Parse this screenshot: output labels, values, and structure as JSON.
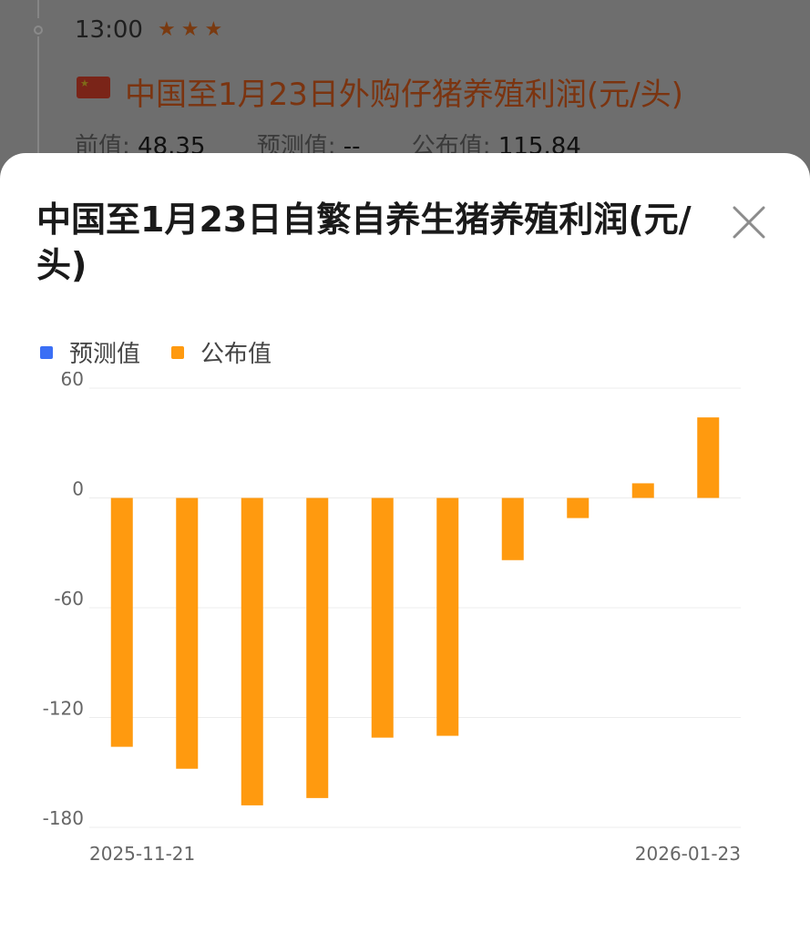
{
  "background_item": {
    "time": "13:00",
    "stars": "★★★",
    "flag_icon": "china-flag-icon",
    "title": "中国至1月23日外购仔猪养殖利润(元/头)",
    "previous_label": "前值:",
    "previous_value": "48.35",
    "forecast_label": "预测值:",
    "forecast_value": "--",
    "actual_label": "公布值:",
    "actual_value": "115.84"
  },
  "sheet": {
    "title": "中国至1月23日自繁自养生猪养殖利润(元/头)",
    "close_icon": "close-icon"
  },
  "colors": {
    "forecast": "#3b6ff5",
    "actual": "#ff9a0f",
    "grid": "#ececec",
    "axis_text": "#666666"
  },
  "chart_data": {
    "type": "bar",
    "title": "中国至1月23日自繁自养生猪养殖利润(元/头)",
    "legend": [
      {
        "name": "预测值",
        "color": "#3b6ff5"
      },
      {
        "name": "公布值",
        "color": "#ff9a0f"
      }
    ],
    "legend_position": "top-left",
    "x_tick_labels": [
      "2025-11-21",
      "2026-01-23"
    ],
    "x": [
      "2025-11-21",
      "2025-11-28",
      "2025-12-05",
      "2025-12-12",
      "2025-12-19",
      "2025-12-26",
      "2026-01-02",
      "2026-01-09",
      "2026-01-16",
      "2026-01-23"
    ],
    "series": [
      {
        "name": "预测值",
        "values": [
          null,
          null,
          null,
          null,
          null,
          null,
          null,
          null,
          null,
          null
        ]
      },
      {
        "name": "公布值",
        "values": [
          -136,
          -148,
          -168,
          -164,
          -131,
          -130,
          -34,
          -11,
          8,
          44
        ]
      }
    ],
    "yticks": [
      60,
      0,
      -60,
      -120,
      -180
    ],
    "ylim": [
      -180,
      60
    ],
    "grid": true
  }
}
